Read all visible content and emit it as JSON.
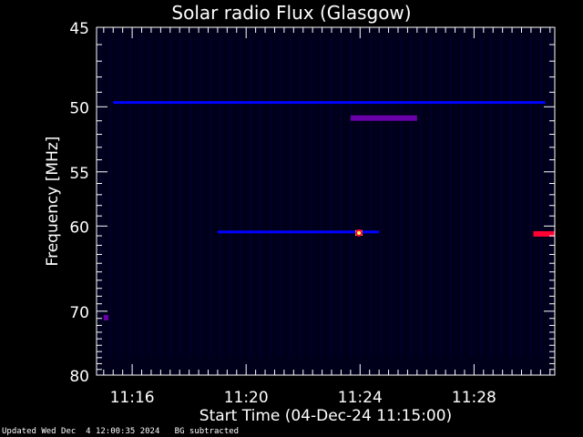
{
  "chart_data": {
    "type": "heatmap",
    "title": "Solar radio Flux (Glasgow)",
    "xlabel": "Start Time (04-Dec-24 11:15:00)",
    "ylabel": "Frequency [MHz]",
    "x_ticks": [
      "11:16",
      "11:20",
      "11:24",
      "11:28"
    ],
    "y_ticks": [
      45,
      50,
      55,
      60,
      70,
      80
    ],
    "xlim": [
      "11:14:45",
      "11:30:50"
    ],
    "ylim": [
      80,
      45
    ],
    "y_scale": "reciprocal",
    "colormap": [
      "#000000",
      "#000066",
      "#0000ff",
      "#6a00aa",
      "#ff0033",
      "#ffff66"
    ],
    "features": [
      {
        "label": "50 MHz dashed line",
        "t_start": "11:15:20",
        "t_end": "11:30:30",
        "freq": 49.7,
        "intensity": 0.3
      },
      {
        "label": "51 MHz bursts",
        "t_start": "11:23:40",
        "t_end": "11:26:00",
        "freq": 50.8,
        "intensity": 0.65
      },
      {
        "label": "60.5 MHz band",
        "t_start": "11:19:00",
        "t_end": "11:24:40",
        "freq": 60.6,
        "intensity": 0.35
      },
      {
        "label": "61 MHz peak",
        "t_start": "11:23:50",
        "t_end": "11:24:05",
        "freq": 60.7,
        "intensity": 1.0
      },
      {
        "label": "61 MHz end band",
        "t_start": "11:30:05",
        "t_end": "11:30:50",
        "freq": 60.8,
        "intensity": 0.7
      },
      {
        "label": "71 MHz mark",
        "t_start": "11:15:00",
        "t_end": "11:15:10",
        "freq": 70.9,
        "intensity": 0.6
      }
    ]
  },
  "footer": {
    "updated": "Updated Wed Dec  4 12:00:35 2024",
    "note": "BG subtracted"
  }
}
